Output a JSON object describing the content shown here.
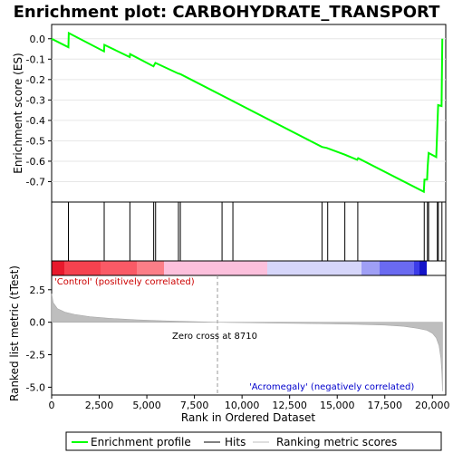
{
  "chart_data": {
    "title": "Enrichment plot: CARBOHYDRATE_TRANSPORT",
    "top_panel": {
      "type": "line",
      "ylabel": "Enrichment score (ES)",
      "ylim": [
        -0.8,
        0.07
      ],
      "yticks": [
        "0.0",
        "-0.1",
        "-0.2",
        "-0.3",
        "-0.4",
        "-0.5",
        "-0.6",
        "-0.7"
      ],
      "ytick_values": [
        0.0,
        -0.1,
        -0.2,
        -0.3,
        -0.4,
        -0.5,
        -0.6,
        -0.7
      ],
      "series_color": "#00ff00",
      "points": [
        [
          0,
          0.0
        ],
        [
          880,
          -0.042
        ],
        [
          900,
          0.028
        ],
        [
          2750,
          -0.062
        ],
        [
          2770,
          -0.03
        ],
        [
          4100,
          -0.09
        ],
        [
          4120,
          -0.075
        ],
        [
          5350,
          -0.135
        ],
        [
          5450,
          -0.118
        ],
        [
          6650,
          -0.17
        ],
        [
          6720,
          -0.172
        ],
        [
          6800,
          -0.175
        ],
        [
          14200,
          -0.53
        ],
        [
          14450,
          -0.535
        ],
        [
          15400,
          -0.568
        ],
        [
          16050,
          -0.593
        ],
        [
          16100,
          -0.585
        ],
        [
          19550,
          -0.75
        ],
        [
          19580,
          -0.69
        ],
        [
          19720,
          -0.69
        ],
        [
          19750,
          -0.63
        ],
        [
          19800,
          -0.56
        ],
        [
          20200,
          -0.58
        ],
        [
          20250,
          -0.46
        ],
        [
          20300,
          -0.325
        ],
        [
          20480,
          -0.33
        ],
        [
          20520,
          0.0
        ]
      ]
    },
    "hits": [
      880,
      2760,
      4110,
      5360,
      5460,
      6660,
      6760,
      8950,
      9520,
      14200,
      14500,
      15400,
      16080,
      19570,
      19740,
      19800,
      20260,
      20310,
      20500
    ],
    "bottom_panel": {
      "type": "area",
      "ylabel": "Ranked list metric (tTest)",
      "xlabel": "Rank in Ordered Dataset",
      "xlim": [
        0,
        20700
      ],
      "ylim": [
        -5.6,
        3.6
      ],
      "yticks": [
        "2.5",
        "0.0",
        "-2.5",
        "-5.0"
      ],
      "ytick_values": [
        2.5,
        0.0,
        -2.5,
        -5.0
      ],
      "xticks": [
        "0",
        "2,500",
        "5,000",
        "7,500",
        "10,000",
        "12,500",
        "15,000",
        "17,500",
        "20,000"
      ],
      "xtick_values": [
        0,
        2500,
        5000,
        7500,
        10000,
        12500,
        15000,
        17500,
        20000
      ],
      "zero_cross_label": "Zero cross at 8710",
      "zero_cross": 8710,
      "positive_label": "'Control' (positively correlated)",
      "negative_label": "'Acromegaly' (negatively correlated)",
      "metric_curve": [
        [
          0,
          2.2
        ],
        [
          80,
          1.5
        ],
        [
          300,
          1.05
        ],
        [
          700,
          0.78
        ],
        [
          1200,
          0.6
        ],
        [
          2000,
          0.42
        ],
        [
          3000,
          0.3
        ],
        [
          4500,
          0.18
        ],
        [
          6000,
          0.1
        ],
        [
          7500,
          0.04
        ],
        [
          8710,
          0.0
        ],
        [
          10000,
          -0.03
        ],
        [
          12000,
          -0.07
        ],
        [
          14000,
          -0.11
        ],
        [
          16000,
          -0.16
        ],
        [
          17500,
          -0.22
        ],
        [
          18500,
          -0.32
        ],
        [
          19200,
          -0.46
        ],
        [
          19700,
          -0.62
        ],
        [
          20000,
          -0.85
        ],
        [
          20200,
          -1.2
        ],
        [
          20350,
          -1.8
        ],
        [
          20450,
          -2.8
        ],
        [
          20500,
          -4.0
        ],
        [
          20530,
          -5.3
        ]
      ]
    },
    "legend": {
      "items": [
        {
          "label": "Enrichment profile",
          "color": "#00ff00"
        },
        {
          "label": "Hits",
          "color": "#000000"
        },
        {
          "label": "Ranking metric scores",
          "color": "#bebebe"
        }
      ]
    }
  }
}
